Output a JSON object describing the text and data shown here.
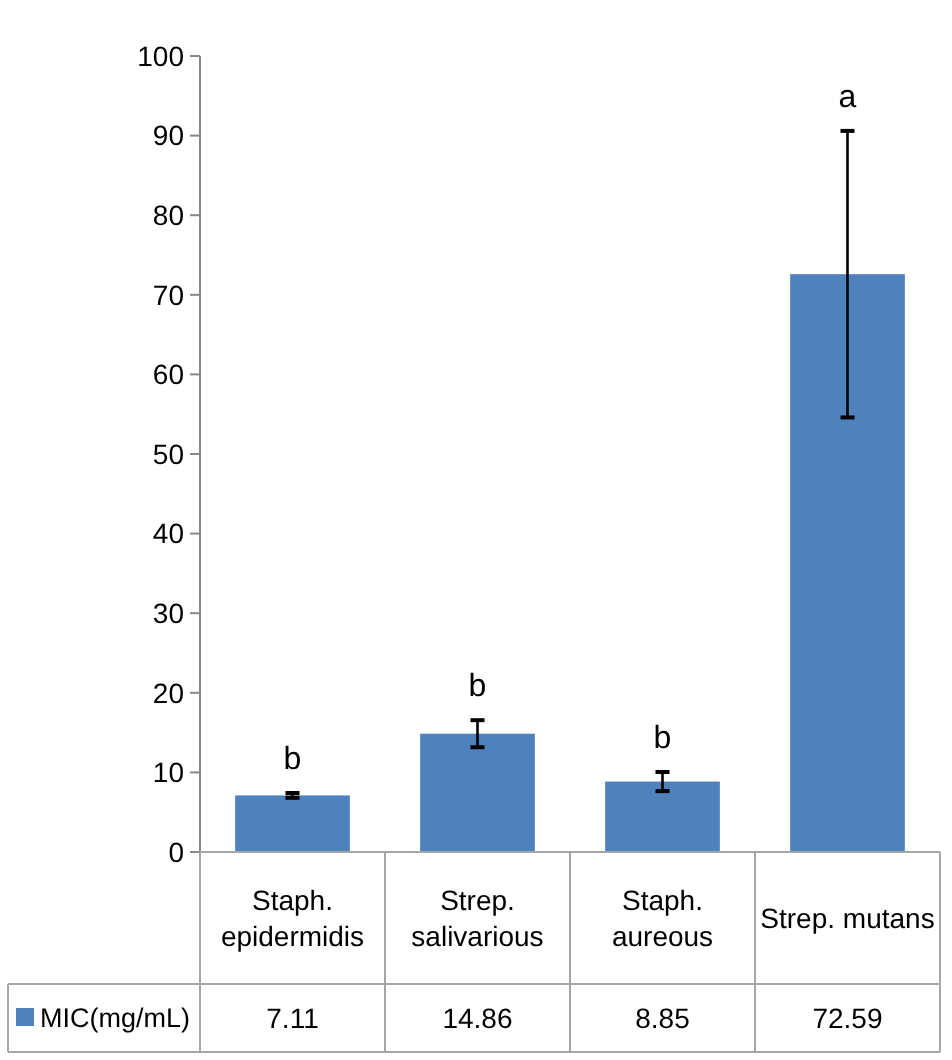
{
  "chart_data": {
    "type": "bar",
    "categories": [
      "Staph. epidermidis",
      "Strep. salivarious",
      "Staph. aureous",
      "Strep. mutans"
    ],
    "series": [
      {
        "name": "MIC(mg/mL)",
        "color": "#4f81bd",
        "values": [
          7.11,
          14.86,
          8.85,
          72.59
        ],
        "errors": [
          0.3,
          1.7,
          1.2,
          18
        ]
      }
    ],
    "ylim": [
      0,
      100
    ],
    "yticks": [
      0,
      10,
      20,
      30,
      40,
      50,
      60,
      70,
      80,
      90,
      100
    ],
    "grid": false,
    "legend": "bottom left",
    "data_labels": true,
    "annotations": [
      "b",
      "b",
      "b",
      "a"
    ]
  }
}
